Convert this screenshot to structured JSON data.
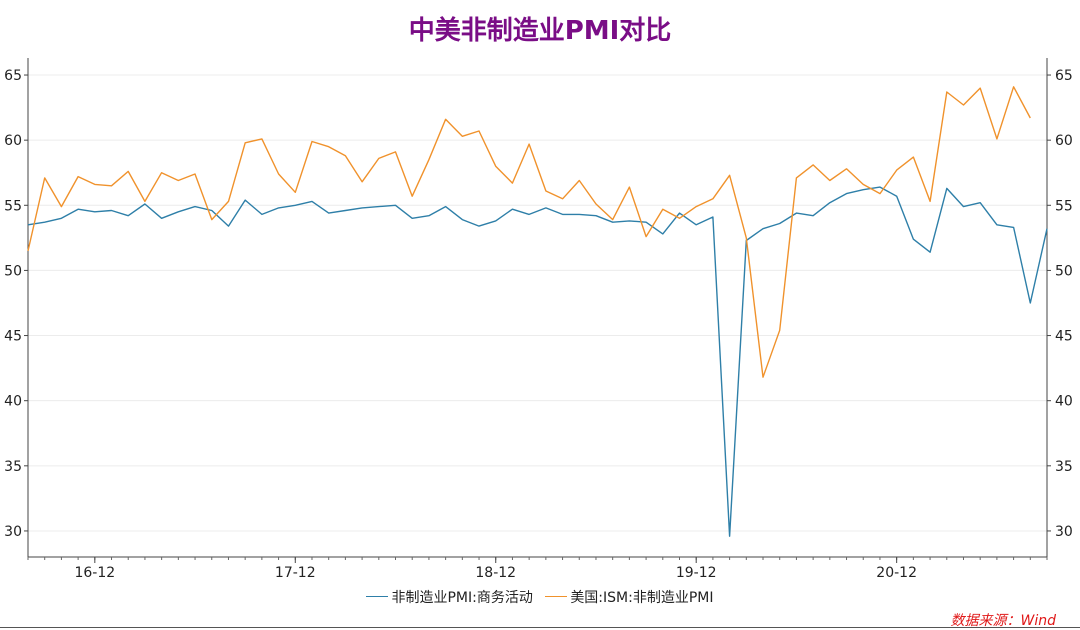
{
  "title": "中美非制造业PMI对比",
  "source": "数据来源：Wind",
  "colors": {
    "title": "#7a0d86",
    "china": "#2e7fa8",
    "us": "#f0922c",
    "source": "#e01818"
  },
  "chart_data": {
    "type": "line",
    "title": "中美非制造业PMI对比",
    "x_ticks": [
      "16-12",
      "17-12",
      "18-12",
      "19-12",
      "20-12"
    ],
    "x_tick_indices": [
      4,
      16,
      28,
      40,
      52
    ],
    "ylim": [
      28,
      66
    ],
    "y_ticks": [
      30,
      35,
      40,
      45,
      50,
      55,
      60,
      65
    ],
    "y_axis": "left-and-right",
    "grid": "horizontal",
    "legend_position": "bottom",
    "series": [
      {
        "name": "非制造业PMI:商务活动",
        "values": [
          53.5,
          53.7,
          54.0,
          54.7,
          54.5,
          54.6,
          54.2,
          55.1,
          54.0,
          54.5,
          54.9,
          54.6,
          53.4,
          55.4,
          54.3,
          54.8,
          55.0,
          55.3,
          54.4,
          54.6,
          54.8,
          54.9,
          55.0,
          54.0,
          54.2,
          54.9,
          53.9,
          53.4,
          53.8,
          54.7,
          54.3,
          54.8,
          54.3,
          54.3,
          54.2,
          53.7,
          53.8,
          53.7,
          52.8,
          54.4,
          53.5,
          54.1,
          29.6,
          52.3,
          53.2,
          53.6,
          54.4,
          54.2,
          55.2,
          55.9,
          56.2,
          56.4,
          55.7,
          52.4,
          51.4,
          56.3,
          54.9,
          55.2,
          53.5,
          53.3,
          47.5,
          53.2
        ]
      },
      {
        "name": "美国:ISM:非制造业PMI",
        "values": [
          51.5,
          57.1,
          54.9,
          57.2,
          56.6,
          56.5,
          57.6,
          55.3,
          57.5,
          56.9,
          57.4,
          53.9,
          55.3,
          59.8,
          60.1,
          57.4,
          56.0,
          59.9,
          59.5,
          58.8,
          56.8,
          58.6,
          59.1,
          55.7,
          58.5,
          61.6,
          60.3,
          60.7,
          58.0,
          56.7,
          59.7,
          56.1,
          55.5,
          56.9,
          55.1,
          53.9,
          56.4,
          52.6,
          54.7,
          54.0,
          54.9,
          55.5,
          57.3,
          52.5,
          41.8,
          45.4,
          57.1,
          58.1,
          56.9,
          57.8,
          56.6,
          55.9,
          57.7,
          58.7,
          55.3,
          63.7,
          62.7,
          64.0,
          60.1,
          64.1,
          61.7
        ]
      }
    ]
  }
}
